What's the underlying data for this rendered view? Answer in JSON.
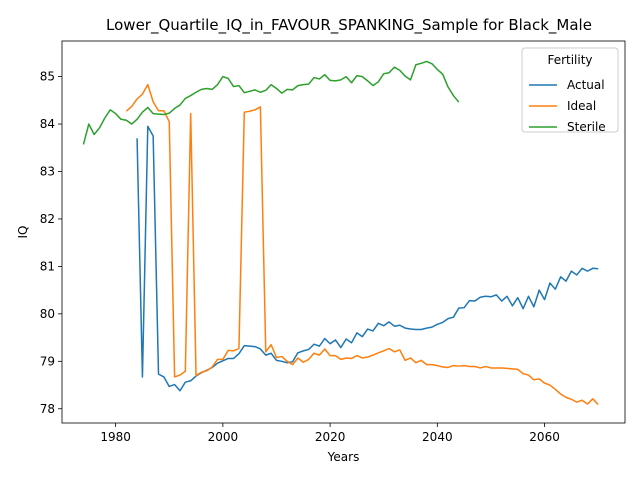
{
  "chart_data": {
    "type": "line",
    "title": "Lower_Quartile_IQ_in_FAVOUR_SPANKING_Sample for Black_Male",
    "xlabel": "Years",
    "ylabel": "IQ",
    "xlim": [
      1970,
      2075
    ],
    "ylim": [
      77.7,
      85.75
    ],
    "xticks": [
      1980,
      2000,
      2020,
      2040,
      2060
    ],
    "yticks": [
      78,
      79,
      80,
      81,
      82,
      83,
      84,
      85
    ],
    "grid": false,
    "legend": {
      "title": "Fertility",
      "placement": "top-right"
    },
    "series": [
      {
        "name": "Actual",
        "color": "#1f77b4",
        "x": [
          1984,
          1985,
          1986,
          1987,
          1988,
          1989,
          1990,
          1991,
          1992,
          1993,
          1994,
          1995,
          1996,
          1997,
          1998,
          1999,
          2000,
          2001,
          2002,
          2003,
          2004,
          2005,
          2006,
          2007,
          2008,
          2009,
          2010,
          2011,
          2012,
          2013,
          2014,
          2015,
          2016,
          2017,
          2018,
          2019,
          2020,
          2021,
          2022,
          2023,
          2024,
          2025,
          2026,
          2027,
          2028,
          2029,
          2030,
          2031,
          2032,
          2033,
          2034,
          2035,
          2036,
          2037,
          2038,
          2039,
          2040,
          2041,
          2042,
          2043,
          2044,
          2045,
          2046,
          2047,
          2048,
          2049,
          2050,
          2051,
          2052,
          2053,
          2054,
          2055,
          2056,
          2057,
          2058,
          2059,
          2060,
          2061,
          2062,
          2063,
          2064,
          2065,
          2066,
          2067,
          2068,
          2069,
          2070
        ],
        "y": [
          83.7,
          78.67,
          83.95,
          83.75,
          78.73,
          78.67,
          78.47,
          78.51,
          78.38,
          78.56,
          78.59,
          78.69,
          78.76,
          78.81,
          78.87,
          78.96,
          79.01,
          79.06,
          79.06,
          79.16,
          79.33,
          79.32,
          79.31,
          79.26,
          79.13,
          79.17,
          79.02,
          79.0,
          78.97,
          78.99,
          79.18,
          79.22,
          79.25,
          79.36,
          79.32,
          79.48,
          79.37,
          79.45,
          79.29,
          79.47,
          79.39,
          79.6,
          79.52,
          79.68,
          79.64,
          79.8,
          79.75,
          79.83,
          79.74,
          79.76,
          79.7,
          79.68,
          79.67,
          79.67,
          79.7,
          79.72,
          79.78,
          79.82,
          79.9,
          79.93,
          80.12,
          80.13,
          80.28,
          80.27,
          80.35,
          80.37,
          80.36,
          80.4,
          80.27,
          80.37,
          80.17,
          80.34,
          80.11,
          80.37,
          80.15,
          80.5,
          80.3,
          80.65,
          80.52,
          80.78,
          80.69,
          80.9,
          80.82,
          80.96,
          80.9,
          80.96,
          80.95
        ]
      },
      {
        "name": "Ideal",
        "color": "#ff7f0e",
        "x": [
          1982,
          1983,
          1984,
          1985,
          1986,
          1987,
          1988,
          1989,
          1990,
          1991,
          1992,
          1993,
          1994,
          1995,
          1996,
          1997,
          1998,
          1999,
          2000,
          2001,
          2002,
          2003,
          2004,
          2005,
          2006,
          2007,
          2008,
          2009,
          2010,
          2011,
          2012,
          2013,
          2014,
          2015,
          2016,
          2017,
          2018,
          2019,
          2020,
          2021,
          2022,
          2023,
          2024,
          2025,
          2026,
          2027,
          2028,
          2029,
          2030,
          2031,
          2032,
          2033,
          2034,
          2035,
          2036,
          2037,
          2038,
          2039,
          2040,
          2041,
          2042,
          2043,
          2044,
          2045,
          2046,
          2047,
          2048,
          2049,
          2050,
          2051,
          2052,
          2053,
          2054,
          2055,
          2056,
          2057,
          2058,
          2059,
          2060,
          2061,
          2062,
          2063,
          2064,
          2065,
          2066,
          2067,
          2068,
          2069,
          2070
        ],
        "y": [
          84.27,
          84.37,
          84.53,
          84.63,
          84.83,
          84.47,
          84.28,
          84.28,
          84.05,
          78.67,
          78.71,
          78.79,
          84.22,
          78.7,
          78.77,
          78.8,
          78.88,
          79.04,
          79.04,
          79.23,
          79.22,
          79.27,
          84.25,
          84.27,
          84.3,
          84.36,
          79.2,
          79.35,
          79.08,
          79.1,
          79.0,
          78.93,
          79.07,
          78.98,
          79.04,
          79.17,
          79.13,
          79.26,
          79.12,
          79.12,
          79.04,
          79.07,
          79.06,
          79.12,
          79.07,
          79.09,
          79.13,
          79.18,
          79.22,
          79.27,
          79.2,
          79.24,
          79.02,
          79.07,
          78.97,
          79.02,
          78.93,
          78.93,
          78.91,
          78.88,
          78.87,
          78.91,
          78.9,
          78.91,
          78.89,
          78.89,
          78.86,
          78.89,
          78.86,
          78.86,
          78.86,
          78.85,
          78.84,
          78.83,
          78.74,
          78.71,
          78.61,
          78.63,
          78.54,
          78.5,
          78.41,
          78.31,
          78.24,
          78.2,
          78.14,
          78.18,
          78.1,
          78.21,
          78.09
        ]
      },
      {
        "name": "Sterile",
        "color": "#2ca02c",
        "x": [
          1974,
          1975,
          1976,
          1977,
          1978,
          1979,
          1980,
          1981,
          1982,
          1983,
          1984,
          1985,
          1986,
          1987,
          1988,
          1989,
          1990,
          1991,
          1992,
          1993,
          1994,
          1995,
          1996,
          1997,
          1998,
          1999,
          2000,
          2001,
          2002,
          2003,
          2004,
          2005,
          2006,
          2007,
          2008,
          2009,
          2010,
          2011,
          2012,
          2013,
          2014,
          2015,
          2016,
          2017,
          2018,
          2019,
          2020,
          2021,
          2022,
          2023,
          2024,
          2025,
          2026,
          2027,
          2028,
          2029,
          2030,
          2031,
          2032,
          2033,
          2034,
          2035,
          2036,
          2037,
          2038,
          2039,
          2040,
          2041,
          2042,
          2043,
          2044
        ],
        "y": [
          83.57,
          84.0,
          83.78,
          83.92,
          84.13,
          84.3,
          84.22,
          84.1,
          84.08,
          84.0,
          84.1,
          84.25,
          84.35,
          84.22,
          84.21,
          84.2,
          84.23,
          84.33,
          84.4,
          84.54,
          84.6,
          84.67,
          84.73,
          84.75,
          84.73,
          84.83,
          85.0,
          84.96,
          84.79,
          84.81,
          84.66,
          84.69,
          84.72,
          84.67,
          84.71,
          84.83,
          84.75,
          84.65,
          84.73,
          84.72,
          84.81,
          84.83,
          84.84,
          84.98,
          84.95,
          85.04,
          84.92,
          84.91,
          84.93,
          85.0,
          84.87,
          85.02,
          85.0,
          84.91,
          84.81,
          84.89,
          85.06,
          85.08,
          85.2,
          85.13,
          85.01,
          84.93,
          85.25,
          85.28,
          85.32,
          85.27,
          85.15,
          85.05,
          84.78,
          84.6,
          84.46
        ]
      }
    ]
  }
}
